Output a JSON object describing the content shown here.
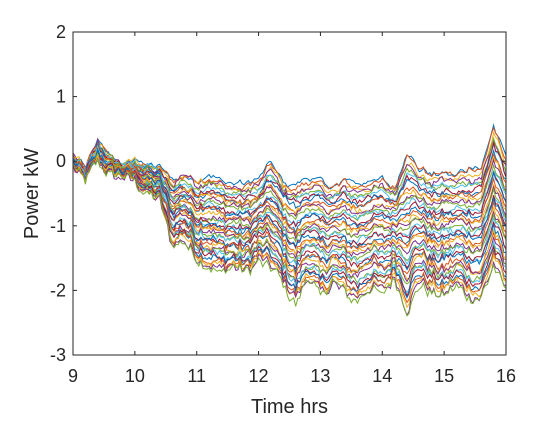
{
  "chart_data": {
    "type": "line",
    "title": "",
    "xlabel": "Time hrs",
    "ylabel": "Power kW",
    "xlim": [
      9,
      16
    ],
    "ylim": [
      -3,
      2
    ],
    "xticks": [
      9,
      10,
      11,
      12,
      13,
      14,
      15,
      16
    ],
    "yticks": [
      -3,
      -2,
      -1,
      0,
      1,
      2
    ],
    "xtick_labels": [
      "9",
      "10",
      "11",
      "12",
      "13",
      "14",
      "15",
      "16"
    ],
    "ytick_labels": [
      "-3",
      "-2",
      "-1",
      "0",
      "1",
      "2"
    ],
    "grid": false,
    "legend": false,
    "palette": [
      "#0072BD",
      "#D95319",
      "#EDB120",
      "#7E2F8E",
      "#77AC30",
      "#4DBEEE",
      "#A2142F"
    ],
    "approx_series_count": 40,
    "series_envelope": {
      "x": [
        9.0,
        9.2,
        9.4,
        9.6,
        9.8,
        10.0,
        10.2,
        10.4,
        10.6,
        10.8,
        11.0,
        11.2,
        11.4,
        11.6,
        11.8,
        12.0,
        12.2,
        12.4,
        12.6,
        12.8,
        13.0,
        13.2,
        13.4,
        13.6,
        13.8,
        14.0,
        14.2,
        14.4,
        14.6,
        14.8,
        15.0,
        15.2,
        15.4,
        15.6,
        15.8,
        16.0
      ],
      "upper": [
        0.1,
        -0.1,
        0.3,
        0.05,
        -0.05,
        0.0,
        -0.05,
        -0.1,
        -0.3,
        -0.2,
        -0.3,
        -0.2,
        -0.3,
        -0.35,
        -0.35,
        -0.3,
        0.0,
        -0.3,
        -0.4,
        -0.3,
        -0.3,
        -0.4,
        -0.3,
        -0.35,
        -0.3,
        -0.25,
        -0.4,
        0.15,
        -0.1,
        -0.2,
        -0.15,
        -0.2,
        -0.1,
        -0.1,
        0.55,
        0.05
      ],
      "lower": [
        -0.1,
        -0.3,
        0.0,
        -0.2,
        -0.2,
        -0.3,
        -0.5,
        -0.6,
        -1.3,
        -1.2,
        -1.5,
        -1.6,
        -1.7,
        -1.65,
        -1.75,
        -1.55,
        -1.65,
        -1.9,
        -2.2,
        -1.8,
        -2.1,
        -1.9,
        -2.05,
        -2.15,
        -1.95,
        -2.1,
        -1.8,
        -2.3,
        -1.9,
        -2.05,
        -2.1,
        -1.95,
        -2.1,
        -2.15,
        -1.6,
        -2.05
      ]
    }
  }
}
